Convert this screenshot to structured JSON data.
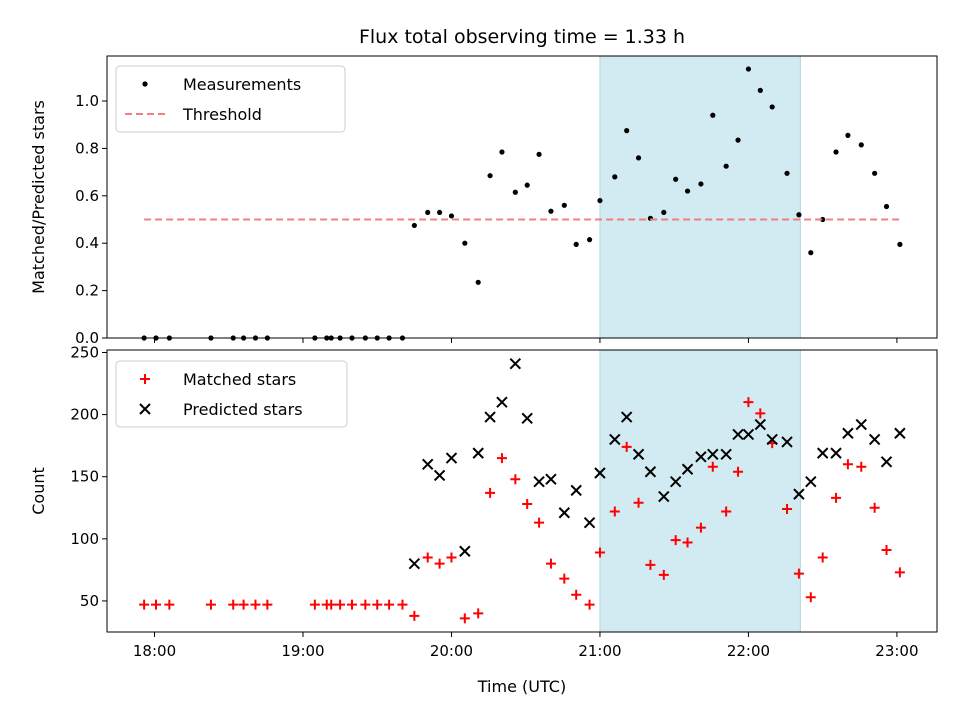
{
  "figure": {
    "title": "Flux total observing time = 1.33 h",
    "xlabel": "Time (UTC)"
  },
  "chart_data": [
    {
      "type": "scatter",
      "ylabel": "Matched/Predicted stars",
      "xlim": [
        17.68,
        23.27
      ],
      "ylim": [
        0,
        1.19
      ],
      "yticks": [
        0.0,
        0.2,
        0.4,
        0.6,
        0.8,
        1.0
      ],
      "ytick_labels": [
        "0.0",
        "0.2",
        "0.4",
        "0.6",
        "0.8",
        "1.0"
      ],
      "legend_position": "upper-left",
      "highlight_span": [
        21.0,
        22.35
      ],
      "highlight_color": "#add8e6",
      "series": [
        {
          "name": "Measurements",
          "marker": "dot",
          "color": "#000000",
          "x": [
            17.93,
            18.01,
            18.1,
            18.38,
            18.53,
            18.6,
            18.68,
            18.76,
            19.08,
            19.16,
            19.19,
            19.25,
            19.33,
            19.42,
            19.5,
            19.58,
            19.67,
            19.75,
            19.84,
            19.92,
            20.0,
            20.09,
            20.18,
            20.26,
            20.34,
            20.43,
            20.51,
            20.59,
            20.67,
            20.76,
            20.84,
            20.93,
            21.0,
            21.1,
            21.18,
            21.26,
            21.34,
            21.43,
            21.51,
            21.59,
            21.68,
            21.76,
            21.85,
            21.93,
            22.0,
            22.08,
            22.16,
            22.26,
            22.34,
            22.42,
            22.5,
            22.59,
            22.67,
            22.76,
            22.85,
            22.93,
            23.02
          ],
          "y": [
            0.0,
            0.0,
            0.0,
            0.0,
            0.0,
            0.0,
            0.0,
            0.0,
            0.0,
            0.0,
            0.0,
            0.0,
            0.0,
            0.0,
            0.0,
            0.0,
            0.0,
            0.475,
            0.53,
            0.53,
            0.515,
            0.4,
            0.235,
            0.685,
            0.785,
            0.615,
            0.645,
            0.775,
            0.535,
            0.56,
            0.395,
            0.415,
            0.58,
            0.68,
            0.875,
            0.76,
            0.505,
            0.53,
            0.67,
            0.62,
            0.65,
            0.94,
            0.725,
            0.835,
            1.135,
            1.045,
            0.975,
            0.695,
            0.52,
            0.36,
            0.5,
            0.785,
            0.855,
            0.815,
            0.695,
            0.555,
            0.395
          ]
        },
        {
          "name": "Threshold",
          "marker": "dashed-line",
          "color": "#f08080",
          "x": [
            17.93,
            23.02
          ],
          "y": [
            0.5,
            0.5
          ]
        }
      ]
    },
    {
      "type": "scatter",
      "ylabel": "Count",
      "xlim": [
        17.68,
        23.27
      ],
      "ylim": [
        25,
        252
      ],
      "yticks": [
        50,
        100,
        150,
        200,
        250
      ],
      "ytick_labels": [
        "50",
        "100",
        "150",
        "200",
        "250"
      ],
      "xticks": [
        18,
        19,
        20,
        21,
        22,
        23
      ],
      "xtick_labels": [
        "18:00",
        "19:00",
        "20:00",
        "21:00",
        "22:00",
        "23:00"
      ],
      "legend_position": "upper-left",
      "highlight_span": [
        21.0,
        22.35
      ],
      "highlight_color": "#add8e6",
      "series": [
        {
          "name": "Matched stars",
          "marker": "plus",
          "color": "#ff0000",
          "x": [
            17.93,
            18.01,
            18.1,
            18.38,
            18.53,
            18.6,
            18.68,
            18.76,
            19.08,
            19.16,
            19.19,
            19.25,
            19.33,
            19.42,
            19.5,
            19.58,
            19.67,
            19.75,
            19.84,
            19.92,
            20.0,
            20.09,
            20.18,
            20.26,
            20.34,
            20.43,
            20.51,
            20.59,
            20.67,
            20.76,
            20.84,
            20.93,
            21.0,
            21.1,
            21.18,
            21.26,
            21.34,
            21.43,
            21.51,
            21.59,
            21.68,
            21.76,
            21.85,
            21.93,
            22.0,
            22.08,
            22.16,
            22.26,
            22.34,
            22.42,
            22.5,
            22.59,
            22.67,
            22.76,
            22.85,
            22.93,
            23.02
          ],
          "y": [
            47,
            47,
            47,
            47,
            47,
            47,
            47,
            47,
            47,
            47,
            47,
            47,
            47,
            47,
            47,
            47,
            47,
            38,
            85,
            80,
            85,
            36,
            40,
            137,
            165,
            148,
            128,
            113,
            80,
            68,
            55,
            47,
            89,
            122,
            174,
            129,
            79,
            71,
            99,
            97,
            109,
            158,
            122,
            154,
            210,
            201,
            177,
            124,
            72,
            53,
            85,
            133,
            160,
            158,
            125,
            91,
            73
          ]
        },
        {
          "name": "Predicted stars",
          "marker": "x",
          "color": "#000000",
          "x": [
            19.75,
            19.84,
            19.92,
            20.0,
            20.09,
            20.18,
            20.26,
            20.34,
            20.43,
            20.51,
            20.59,
            20.67,
            20.76,
            20.84,
            20.93,
            21.0,
            21.1,
            21.18,
            21.26,
            21.34,
            21.43,
            21.51,
            21.59,
            21.68,
            21.76,
            21.85,
            21.93,
            22.0,
            22.08,
            22.16,
            22.26,
            22.34,
            22.42,
            22.5,
            22.59,
            22.67,
            22.76,
            22.85,
            22.93,
            23.02
          ],
          "y": [
            80,
            160,
            151,
            165,
            90,
            169,
            198,
            210,
            241,
            197,
            146,
            148,
            121,
            139,
            113,
            153,
            180,
            198,
            168,
            154,
            134,
            146,
            156,
            166,
            168,
            168,
            184,
            184,
            192,
            180,
            178,
            136,
            146,
            169,
            169,
            185,
            192,
            180,
            162,
            185
          ]
        }
      ]
    }
  ]
}
